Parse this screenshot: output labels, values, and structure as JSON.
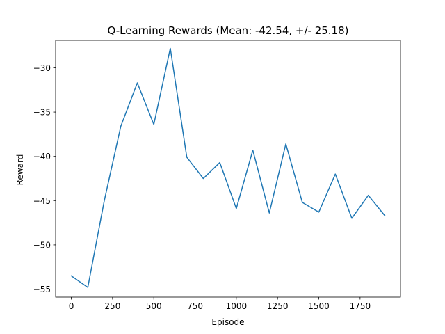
{
  "chart_data": {
    "type": "line",
    "title": "Q-Learning Rewards (Mean: -42.54, +/- 25.18)",
    "xlabel": "Episode",
    "ylabel": "Reward",
    "xlim": [
      -95,
      1995
    ],
    "ylim": [
      -55.9,
      -26.9
    ],
    "xticks": [
      0,
      250,
      500,
      750,
      1000,
      1250,
      1500,
      1750
    ],
    "xtick_labels": [
      "0",
      "250",
      "500",
      "750",
      "1000",
      "1250",
      "1500",
      "1750"
    ],
    "yticks": [
      -55,
      -50,
      -45,
      -40,
      -35,
      -30
    ],
    "ytick_labels": [
      "−55",
      "−50",
      "−45",
      "−40",
      "−35",
      "−30"
    ],
    "grid": false,
    "series": [
      {
        "color": "#1f77b4",
        "x": [
          0,
          100,
          200,
          300,
          400,
          500,
          600,
          700,
          800,
          900,
          1000,
          1100,
          1200,
          1300,
          1400,
          1500,
          1600,
          1700,
          1800,
          1900
        ],
        "y": [
          -53.5,
          -54.8,
          -45.0,
          -36.6,
          -31.7,
          -36.4,
          -27.8,
          -40.1,
          -42.5,
          -40.7,
          -45.9,
          -39.3,
          -46.4,
          -38.6,
          -45.2,
          -46.3,
          -42.0,
          -47.0,
          -44.4,
          -46.7
        ]
      }
    ]
  }
}
